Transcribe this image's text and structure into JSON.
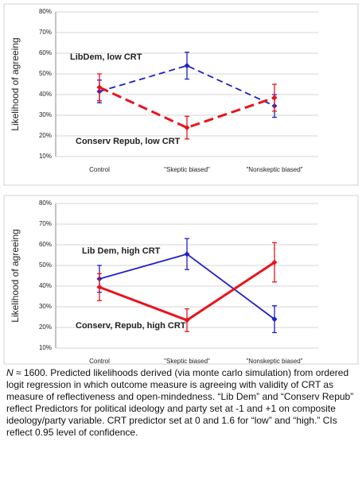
{
  "chart_data": [
    {
      "type": "line",
      "ylabel": "Likelihood of agreeing",
      "categories": [
        "Control",
        "\"Skeptic biased\"",
        "\"Nonskeptic biased\""
      ],
      "ylim": [
        10,
        80
      ],
      "yticks": [
        {
          "value": 10,
          "label": "10%"
        },
        {
          "value": 20,
          "label": "20%"
        },
        {
          "value": 30,
          "label": "30%"
        },
        {
          "value": 40,
          "label": "40%"
        },
        {
          "value": 50,
          "label": "50%"
        },
        {
          "value": 60,
          "label": "60%"
        },
        {
          "value": 70,
          "label": "70%"
        },
        {
          "value": 80,
          "label": "80%"
        }
      ],
      "grid": true,
      "linestyle": "dashed",
      "series": [
        {
          "name": "LibDem, low CRT",
          "color": "#2020c8",
          "values": [
            41.5,
            54,
            34.5
          ],
          "errors": [
            5.5,
            6.5,
            5.5
          ]
        },
        {
          "name": "Conserv Repub, low CRT",
          "color": "#e8141c",
          "values": [
            43.5,
            24,
            38.5
          ],
          "errors": [
            6.5,
            5.5,
            6.5
          ]
        }
      ]
    },
    {
      "type": "line",
      "ylabel": "Likelihood of agreeing",
      "categories": [
        "Control",
        "\"Skeptic biased\"",
        "\"Nonskeptic biased\""
      ],
      "ylim": [
        10,
        80
      ],
      "yticks": [
        {
          "value": 10,
          "label": "10%"
        },
        {
          "value": 20,
          "label": "20%"
        },
        {
          "value": 30,
          "label": "30%"
        },
        {
          "value": 40,
          "label": "40%"
        },
        {
          "value": 50,
          "label": "50%"
        },
        {
          "value": 60,
          "label": "60%"
        },
        {
          "value": 70,
          "label": "70%"
        },
        {
          "value": 80,
          "label": "80%"
        }
      ],
      "grid": true,
      "linestyle": "solid",
      "series": [
        {
          "name": "Lib Dem, high CRT",
          "color": "#2020c8",
          "values": [
            43.5,
            55.5,
            24
          ],
          "errors": [
            6.5,
            7.5,
            6.5
          ]
        },
        {
          "name": "Conserv, Repub, high CRT",
          "color": "#e8141c",
          "values": [
            39.5,
            23.5,
            51.5
          ],
          "errors": [
            6.5,
            5.5,
            9.5
          ]
        }
      ]
    }
  ],
  "caption": {
    "n": "N",
    "text": " ≈ 1600. Predicted likelihoods derived (via monte carlo simulation) from ordered logit regression in which outcome measure is agreeing with validity of CRT as measure of reflectiveness and open-mindedness. “Lib Dem” and “Conserv Repub” reflect Predictors for political ideology and party set at -1 and +1 on composite ideology/party variable. CRT predictor set at 0 and 1.6 for “low” and “high.” CIs reflect 0.95 level of confidence."
  }
}
